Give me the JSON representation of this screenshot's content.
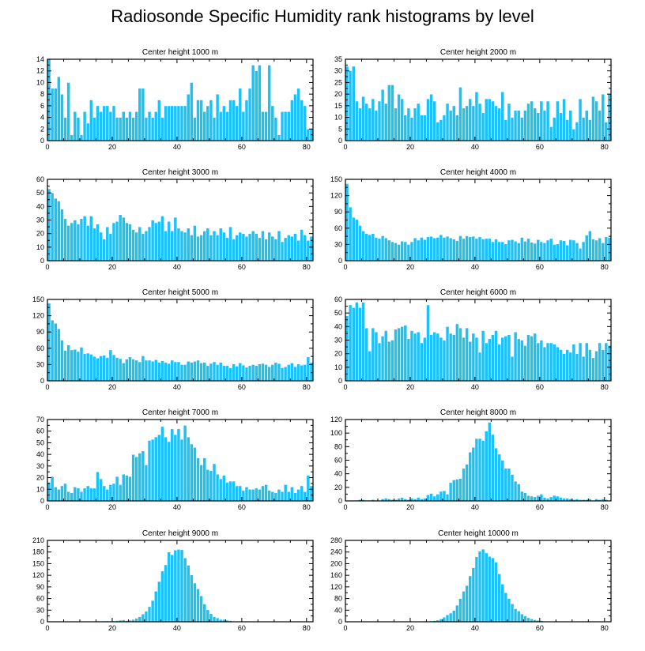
{
  "title": "Radiosonde Specific Humidity rank histograms by level",
  "colors": {
    "bar": "#1ec1f5",
    "bar_edge": "#ffffff",
    "axis": "#000000"
  },
  "chart_data": [
    {
      "type": "bar",
      "title": "Center height 1000 m",
      "xlim": [
        0,
        82
      ],
      "ylim": [
        0,
        14
      ],
      "xticks": [
        0,
        20,
        40,
        60,
        80
      ],
      "yticks": [
        0,
        2,
        4,
        6,
        8,
        10,
        12,
        14
      ],
      "values": [
        14,
        9,
        9,
        11,
        8,
        4,
        10,
        1,
        5,
        4,
        1,
        5,
        3,
        7,
        4,
        6,
        5,
        6,
        6,
        5,
        6,
        4,
        4,
        5,
        4,
        5,
        4,
        5,
        9,
        9,
        4,
        5,
        4,
        5,
        7,
        4,
        6,
        6,
        6,
        6,
        6,
        6,
        6,
        8,
        10,
        4,
        7,
        7,
        5,
        6,
        7,
        4,
        8,
        5,
        6,
        5,
        7,
        7,
        6,
        9,
        5,
        7,
        9,
        13,
        12,
        13,
        5,
        5,
        13,
        6,
        4,
        1,
        5,
        5,
        5,
        7,
        8,
        9,
        7,
        6,
        2,
        2
      ]
    },
    {
      "type": "bar",
      "title": "Center height 2000 m",
      "xlim": [
        0,
        82
      ],
      "ylim": [
        0,
        35
      ],
      "xticks": [
        0,
        20,
        40,
        60,
        80
      ],
      "yticks": [
        0,
        5,
        10,
        15,
        20,
        25,
        30,
        35
      ],
      "values": [
        32,
        30,
        32,
        17,
        14,
        19,
        16,
        14,
        18,
        13,
        17,
        22,
        16,
        24,
        24,
        14,
        20,
        18,
        11,
        14,
        10,
        14,
        16,
        11,
        11,
        18,
        20,
        17,
        8,
        9,
        11,
        16,
        13,
        15,
        11,
        23,
        14,
        15,
        18,
        15,
        21,
        16,
        12,
        18,
        18,
        17,
        15,
        14,
        21,
        9,
        16,
        10,
        13,
        13,
        10,
        13,
        16,
        17,
        14,
        12,
        17,
        13,
        17,
        6,
        10,
        17,
        12,
        18,
        9,
        13,
        5,
        8,
        18,
        10,
        13,
        9,
        19,
        17,
        13,
        20,
        8,
        20
      ]
    },
    {
      "type": "bar",
      "title": "Center height 3000 m",
      "xlim": [
        0,
        82
      ],
      "ylim": [
        0,
        60
      ],
      "xticks": [
        0,
        20,
        40,
        60,
        80
      ],
      "yticks": [
        0,
        10,
        20,
        30,
        40,
        50,
        60
      ],
      "values": [
        53,
        50,
        46,
        44,
        38,
        31,
        26,
        28,
        30,
        27,
        31,
        33,
        26,
        33,
        24,
        27,
        21,
        16,
        25,
        20,
        28,
        29,
        34,
        32,
        28,
        27,
        23,
        21,
        25,
        20,
        22,
        25,
        30,
        28,
        29,
        33,
        22,
        29,
        22,
        32,
        24,
        22,
        21,
        24,
        19,
        26,
        18,
        19,
        22,
        24,
        19,
        22,
        19,
        24,
        21,
        17,
        25,
        16,
        19,
        21,
        20,
        18,
        20,
        22,
        20,
        17,
        22,
        16,
        21,
        18,
        16,
        22,
        14,
        17,
        19,
        18,
        20,
        15,
        23,
        19,
        15,
        18
      ]
    },
    {
      "type": "bar",
      "title": "Center height 4000 m",
      "xlim": [
        0,
        82
      ],
      "ylim": [
        0,
        150
      ],
      "xticks": [
        0,
        20,
        40,
        60,
        80
      ],
      "yticks": [
        0,
        30,
        60,
        90,
        120,
        150
      ],
      "values": [
        142,
        99,
        80,
        76,
        65,
        55,
        50,
        48,
        50,
        43,
        41,
        46,
        42,
        38,
        35,
        33,
        30,
        36,
        35,
        30,
        35,
        42,
        38,
        43,
        39,
        44,
        45,
        42,
        43,
        48,
        43,
        45,
        42,
        40,
        37,
        46,
        41,
        46,
        44,
        45,
        41,
        44,
        40,
        41,
        41,
        35,
        40,
        35,
        35,
        31,
        38,
        39,
        36,
        33,
        43,
        36,
        41,
        34,
        32,
        39,
        35,
        33,
        38,
        41,
        30,
        31,
        38,
        37,
        29,
        39,
        38,
        33,
        23,
        35,
        47,
        55,
        40,
        38,
        42,
        33,
        44,
        43
      ]
    },
    {
      "type": "bar",
      "title": "Center height 5000 m",
      "xlim": [
        0,
        82
      ],
      "ylim": [
        0,
        150
      ],
      "xticks": [
        0,
        20,
        40,
        60,
        80
      ],
      "yticks": [
        0,
        30,
        60,
        90,
        120,
        150
      ],
      "values": [
        143,
        112,
        106,
        96,
        75,
        56,
        66,
        57,
        58,
        54,
        62,
        50,
        51,
        49,
        45,
        42,
        46,
        47,
        43,
        57,
        48,
        43,
        41,
        33,
        40,
        44,
        40,
        38,
        35,
        46,
        38,
        38,
        36,
        39,
        34,
        37,
        34,
        32,
        38,
        35,
        35,
        30,
        30,
        36,
        34,
        36,
        38,
        33,
        34,
        28,
        32,
        35,
        30,
        34,
        28,
        28,
        24,
        31,
        27,
        33,
        29,
        25,
        28,
        30,
        28,
        31,
        32,
        30,
        26,
        30,
        34,
        32,
        24,
        26,
        30,
        33,
        26,
        31,
        29,
        30,
        44,
        34
      ]
    },
    {
      "type": "bar",
      "title": "Center height 6000 m",
      "xlim": [
        0,
        82
      ],
      "ylim": [
        0,
        60
      ],
      "xticks": [
        0,
        20,
        40,
        60,
        80
      ],
      "yticks": [
        0,
        10,
        20,
        30,
        40,
        50,
        60
      ],
      "values": [
        48,
        56,
        54,
        58,
        54,
        58,
        39,
        22,
        39,
        36,
        28,
        33,
        37,
        29,
        30,
        38,
        39,
        40,
        41,
        31,
        37,
        35,
        36,
        28,
        32,
        56,
        34,
        36,
        35,
        32,
        30,
        40,
        35,
        34,
        42,
        39,
        32,
        39,
        29,
        35,
        32,
        21,
        37,
        28,
        31,
        34,
        37,
        27,
        32,
        33,
        34,
        18,
        36,
        31,
        30,
        26,
        34,
        33,
        35,
        28,
        30,
        25,
        28,
        28,
        27,
        25,
        23,
        20,
        23,
        21,
        27,
        20,
        28,
        18,
        28,
        23,
        17,
        22,
        28,
        23,
        28,
        26
      ]
    },
    {
      "type": "bar",
      "title": "Center height 7000 m",
      "xlim": [
        0,
        82
      ],
      "ylim": [
        0,
        70
      ],
      "xticks": [
        0,
        20,
        40,
        60,
        80
      ],
      "yticks": [
        0,
        10,
        20,
        30,
        40,
        50,
        60,
        70
      ],
      "values": [
        16,
        21,
        12,
        10,
        13,
        15,
        8,
        7,
        12,
        11,
        8,
        11,
        13,
        11,
        11,
        25,
        19,
        13,
        10,
        14,
        15,
        21,
        14,
        23,
        22,
        21,
        40,
        38,
        41,
        43,
        31,
        52,
        53,
        55,
        57,
        64,
        55,
        51,
        62,
        57,
        62,
        53,
        65,
        55,
        49,
        46,
        37,
        31,
        37,
        27,
        26,
        32,
        23,
        19,
        22,
        16,
        17,
        17,
        13,
        13,
        9,
        12,
        10,
        10,
        11,
        10,
        13,
        14,
        9,
        8,
        7,
        10,
        8,
        14,
        8,
        12,
        7,
        10,
        13,
        8,
        22,
        13
      ]
    },
    {
      "type": "bar",
      "title": "Center height 8000 m",
      "xlim": [
        0,
        82
      ],
      "ylim": [
        0,
        120
      ],
      "xticks": [
        0,
        20,
        40,
        60,
        80
      ],
      "yticks": [
        0,
        20,
        40,
        60,
        80,
        100,
        120
      ],
      "values": [
        0,
        1,
        0,
        1,
        2,
        2,
        1,
        1,
        2,
        1,
        1,
        3,
        4,
        3,
        2,
        2,
        4,
        5,
        3,
        2,
        4,
        3,
        5,
        3,
        4,
        9,
        11,
        7,
        10,
        14,
        15,
        10,
        27,
        31,
        32,
        33,
        48,
        54,
        72,
        79,
        92,
        92,
        89,
        103,
        116,
        98,
        78,
        69,
        60,
        48,
        48,
        39,
        29,
        25,
        14,
        12,
        8,
        7,
        6,
        8,
        10,
        5,
        4,
        6,
        8,
        7,
        5,
        4,
        4,
        3,
        2,
        3,
        2,
        2,
        2,
        3,
        1,
        3,
        2,
        3,
        2,
        1
      ]
    },
    {
      "type": "bar",
      "title": "Center height 9000 m",
      "xlim": [
        0,
        82
      ],
      "ylim": [
        0,
        210
      ],
      "xticks": [
        0,
        20,
        40,
        60,
        80
      ],
      "yticks": [
        0,
        30,
        60,
        90,
        120,
        150,
        180,
        210
      ],
      "values": [
        0,
        0,
        0,
        0,
        0,
        0,
        0,
        0,
        0,
        1,
        1,
        1,
        1,
        1,
        1,
        2,
        1,
        2,
        2,
        2,
        2,
        3,
        4,
        5,
        3,
        4,
        6,
        9,
        13,
        20,
        27,
        39,
        55,
        79,
        104,
        131,
        147,
        180,
        173,
        185,
        187,
        186,
        165,
        146,
        121,
        100,
        85,
        67,
        46,
        31,
        21,
        13,
        10,
        6,
        6,
        4,
        3,
        1,
        1,
        1,
        0,
        0,
        0,
        0,
        0,
        0,
        0,
        0,
        0,
        0,
        0,
        0,
        0,
        0,
        0,
        0,
        0,
        0,
        0,
        0,
        0,
        0
      ]
    },
    {
      "type": "bar",
      "title": "Center height 10000 m",
      "xlim": [
        0,
        82
      ],
      "ylim": [
        0,
        280
      ],
      "xticks": [
        0,
        20,
        40,
        60,
        80
      ],
      "yticks": [
        0,
        40,
        80,
        120,
        160,
        200,
        240,
        280
      ],
      "values": [
        0,
        0,
        0,
        0,
        0,
        0,
        0,
        0,
        0,
        0,
        0,
        0,
        0,
        0,
        0,
        0,
        0,
        0,
        0,
        0,
        0,
        0,
        0,
        1,
        1,
        1,
        3,
        4,
        6,
        10,
        16,
        24,
        30,
        39,
        57,
        80,
        105,
        125,
        158,
        186,
        224,
        243,
        250,
        237,
        225,
        220,
        205,
        165,
        130,
        100,
        80,
        62,
        45,
        37,
        27,
        20,
        14,
        10,
        7,
        5,
        4,
        2,
        2,
        1,
        1,
        1,
        0,
        0,
        0,
        0,
        0,
        0,
        0,
        0,
        0,
        0,
        0,
        0,
        0,
        0,
        0,
        0
      ]
    }
  ]
}
